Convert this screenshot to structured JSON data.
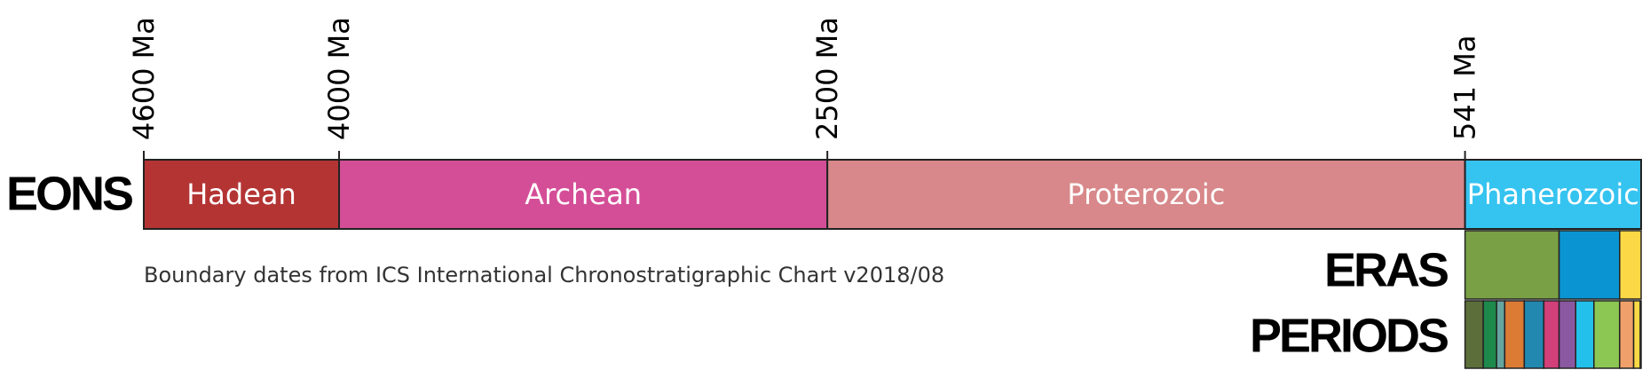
{
  "timeline": {
    "row_labels": {
      "eons": "EONS",
      "eras": "ERAS",
      "periods": "PERIODS"
    },
    "note": "Boundary dates from ICS International Chronostratigraphic Chart v2018/08",
    "xlim": [
      4600,
      0
    ],
    "ticks": [
      {
        "value": 4600,
        "label": "4600 Ma"
      },
      {
        "value": 4000,
        "label": "4000 Ma"
      },
      {
        "value": 2500,
        "label": "2500 Ma"
      },
      {
        "value": 541,
        "label": "541 Ma"
      }
    ],
    "eons": [
      {
        "name": "Hadean",
        "start": 4600,
        "end": 4000,
        "color": "#b43434"
      },
      {
        "name": "Archean",
        "start": 4000,
        "end": 2500,
        "color": "#d44e97"
      },
      {
        "name": "Proterozoic",
        "start": 2500,
        "end": 541,
        "color": "#d8888a"
      },
      {
        "name": "Phanerozoic",
        "start": 541,
        "end": 0,
        "color": "#35c3f0"
      }
    ],
    "eras": [
      {
        "start": 541,
        "end": 252,
        "color": "#7aa046"
      },
      {
        "start": 252,
        "end": 66,
        "color": "#0a95d2"
      },
      {
        "start": 66,
        "end": 0,
        "color": "#fbd845"
      }
    ],
    "periods": [
      {
        "start": 541,
        "end": 485,
        "color": "#5c6e3a"
      },
      {
        "start": 485,
        "end": 444,
        "color": "#1d8a4c"
      },
      {
        "start": 444,
        "end": 419,
        "color": "#67a5a0"
      },
      {
        "start": 419,
        "end": 359,
        "color": "#dc7b34"
      },
      {
        "start": 359,
        "end": 299,
        "color": "#2288b0"
      },
      {
        "start": 299,
        "end": 252,
        "color": "#d2407a"
      },
      {
        "start": 252,
        "end": 201,
        "color": "#8a58a0"
      },
      {
        "start": 201,
        "end": 145,
        "color": "#22c0ea"
      },
      {
        "start": 145,
        "end": 66,
        "color": "#8cc653"
      },
      {
        "start": 66,
        "end": 23,
        "color": "#f0a06a"
      },
      {
        "start": 23,
        "end": 2.58,
        "color": "#fbd845"
      },
      {
        "start": 2.58,
        "end": 0,
        "color": "#fff5a0"
      }
    ]
  }
}
